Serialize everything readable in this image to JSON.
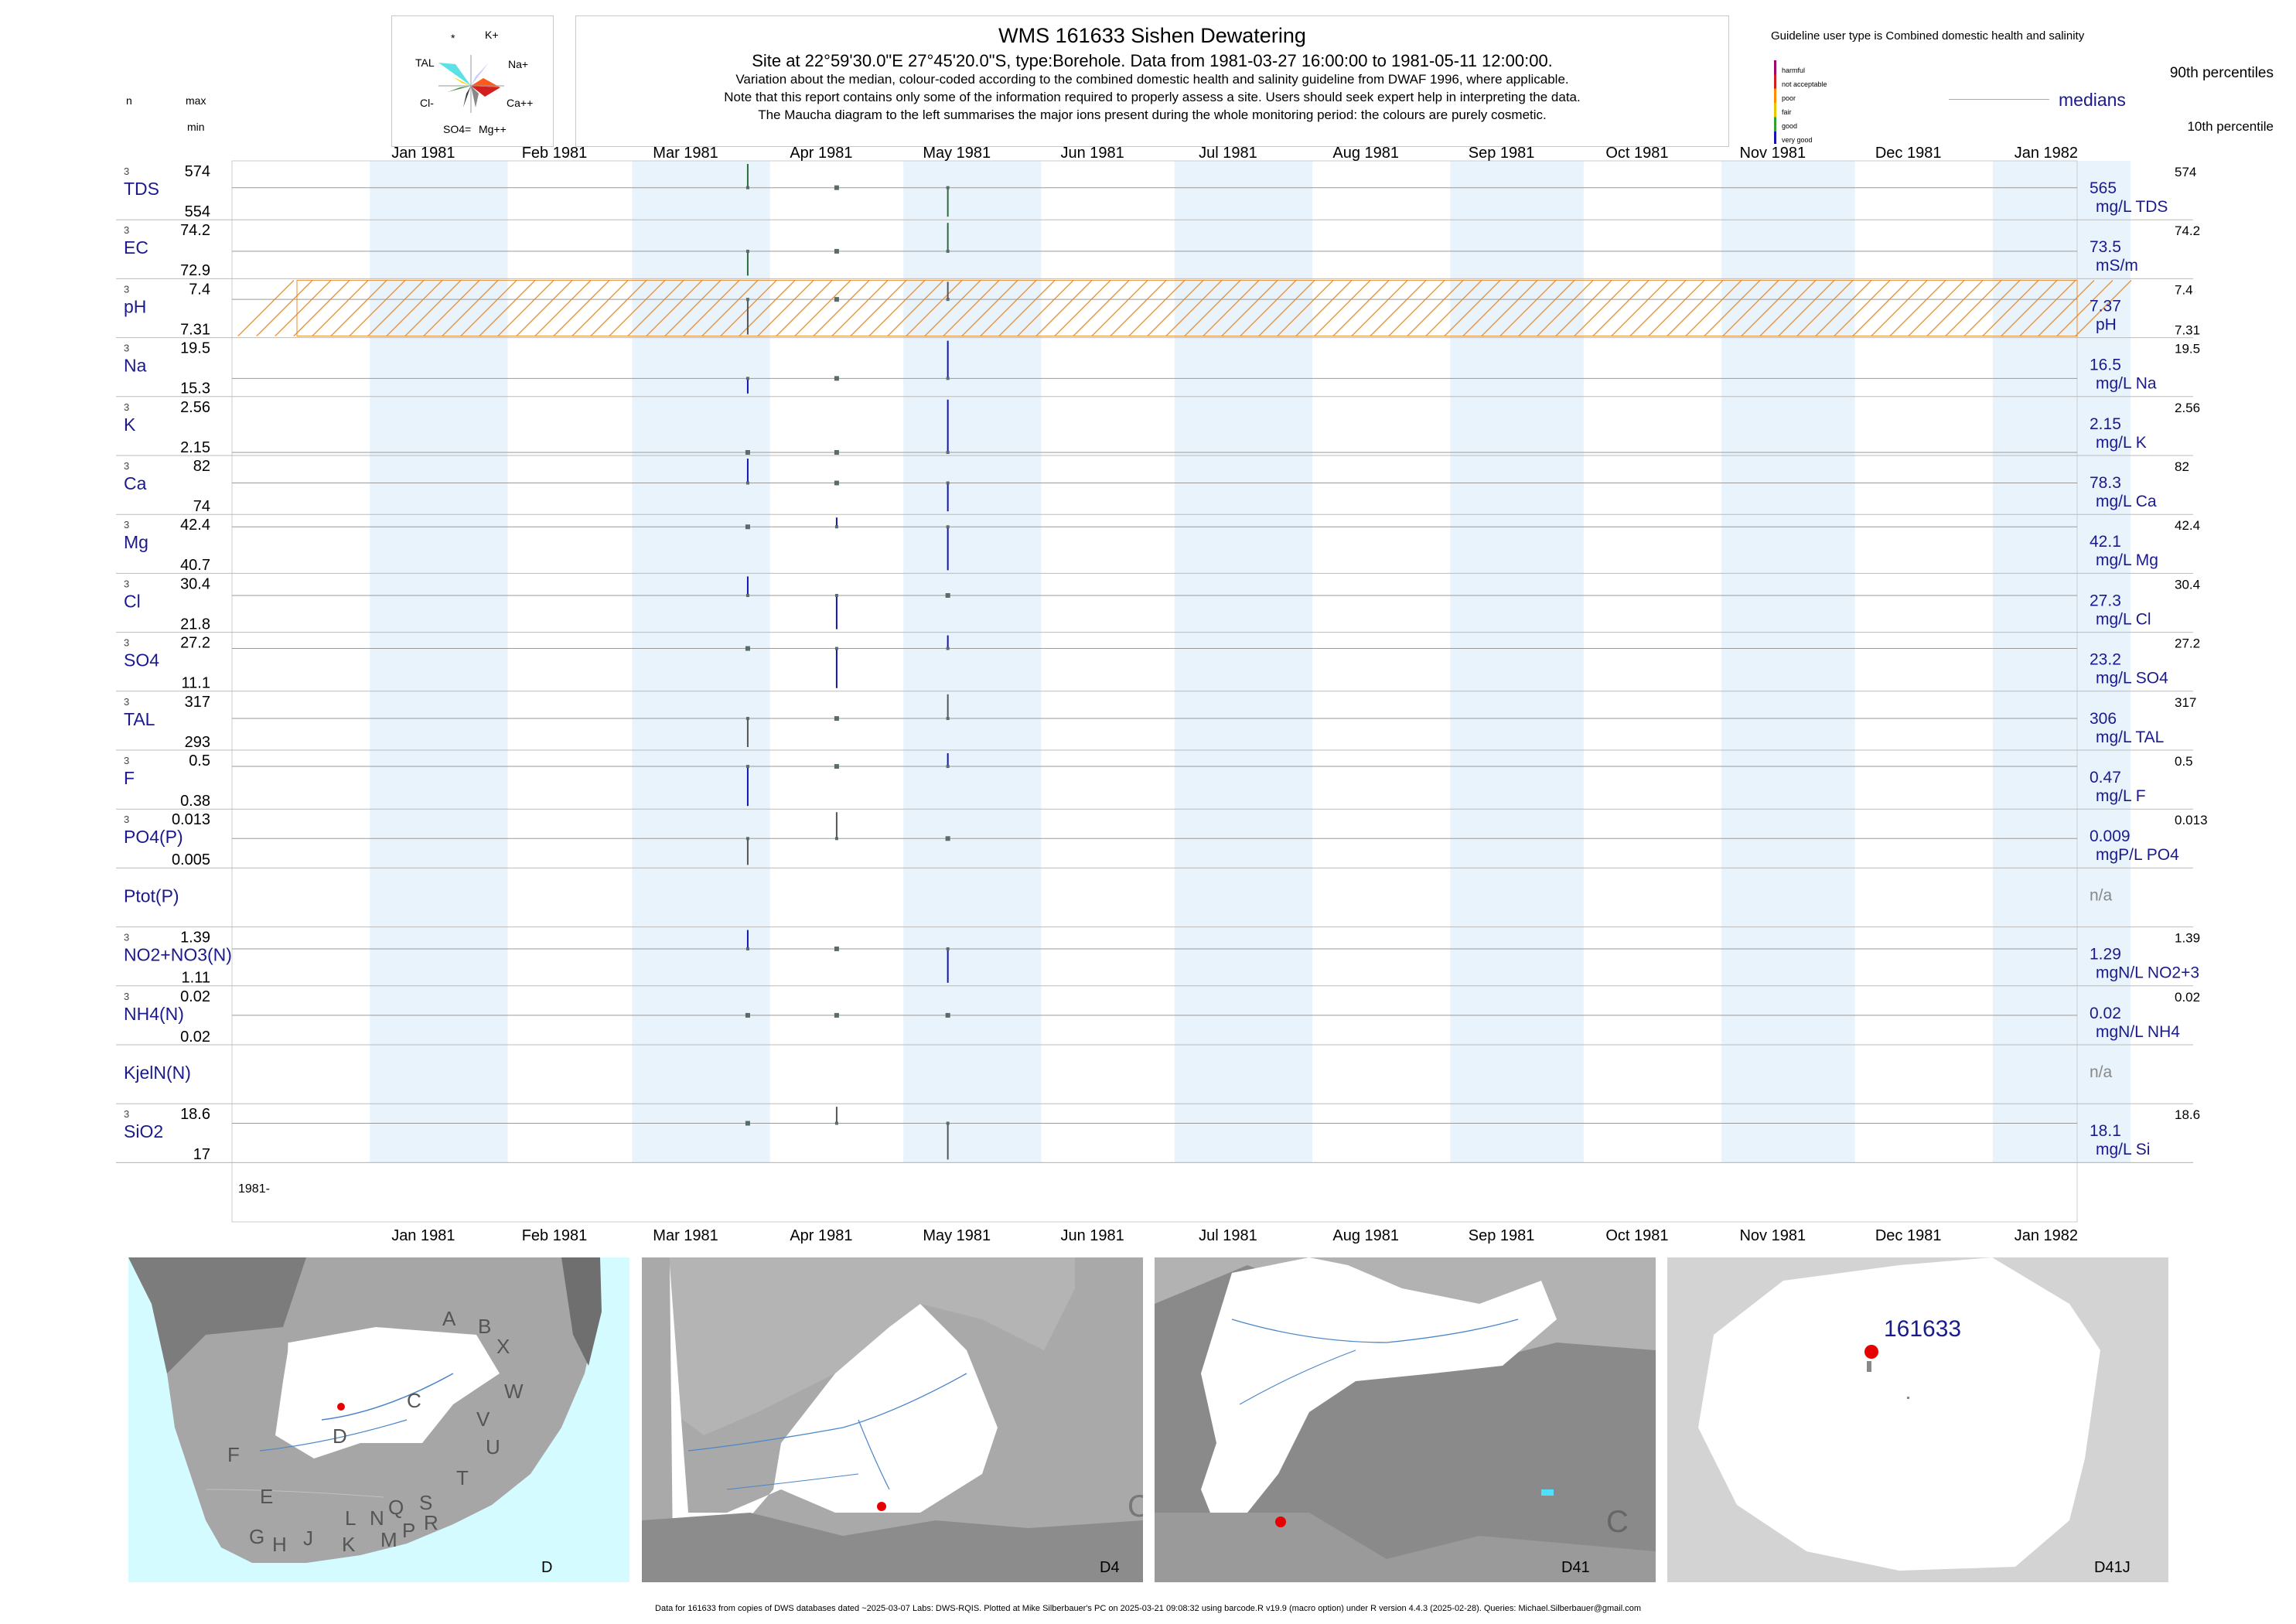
{
  "header": {
    "title": "WMS 161633  Sishen Dewatering",
    "site_line": "Site at 22°59'30.0\"E 27°45'20.0\"S, type:Borehole.  Data from 1981-03-27 16:00:00 to 1981-05-11 12:00:00.",
    "note1": "Variation about the median,  colour-coded according to the combined domestic health and salinity guideline from DWAF 1996, where applicable.",
    "note2": "Note that this report contains only some of the information required to properly assess a site. Users should seek expert help in interpreting the data.",
    "note3": "The Maucha diagram to the left summarises the major ions present during the whole monitoring period: the colours are purely cosmetic."
  },
  "column_headers": {
    "n": "n",
    "max": "max",
    "min": "min"
  },
  "maucha": {
    "labels": [
      "*",
      "K+",
      "TAL",
      "Na+",
      "Cl-",
      "Ca++",
      "SO4=",
      "Mg++"
    ]
  },
  "legend": {
    "guideline": "Guideline user type is Combined domestic health and salinity",
    "classes": [
      "harmful",
      "not acceptable",
      "poor",
      "fair",
      "good",
      "very good"
    ],
    "class_colors": [
      "#a0006e",
      "#d21e1e",
      "#ff8c00",
      "#e6c800",
      "#32a032",
      "#1414b4"
    ],
    "p90": "90th percentiles",
    "medians": "medians",
    "p10": "10th percentile"
  },
  "chart_data": {
    "type": "strip",
    "x_range": [
      "1980-12-01",
      "1982-01-20"
    ],
    "months": [
      "Jan 1981",
      "Feb 1981",
      "Mar 1981",
      "Apr 1981",
      "May 1981",
      "Jun 1981",
      "Jul 1981",
      "Aug 1981",
      "Sep 1981",
      "Oct 1981",
      "Nov 1981",
      "Dec 1981",
      "Jan 1982"
    ],
    "year_label": "1981-",
    "sample_dates": [
      "1981-03-27",
      "1981-04-16",
      "1981-05-11"
    ],
    "hatched_band_variable": "pH",
    "colors": {
      "stripe": "#e8f3fc",
      "very_good": "#1414b4",
      "good": "#2e6b3a",
      "gray": "#555555",
      "hatch": "#f08c28"
    },
    "rows": [
      {
        "label": "TDS",
        "n": "3",
        "max": "574",
        "min": "554",
        "median": "565",
        "unit": "mg/L TDS",
        "rmax": "574",
        "rmin": "",
        "values": [
          574,
          565,
          554
        ],
        "color": "good"
      },
      {
        "label": "EC",
        "n": "3",
        "max": "74.2",
        "min": "72.9",
        "median": "73.5",
        "unit": "mS/m",
        "rmax": "74.2",
        "rmin": "",
        "values": [
          72.9,
          73.5,
          74.2
        ],
        "color": "good"
      },
      {
        "label": "pH",
        "n": "3",
        "max": "7.4",
        "min": "7.31",
        "median": "7.37",
        "unit": "pH",
        "rmax": "7.4",
        "rmin": "7.31",
        "values": [
          7.31,
          7.37,
          7.4
        ],
        "color": "gray"
      },
      {
        "label": "Na",
        "n": "3",
        "max": "19.5",
        "min": "15.3",
        "median": "16.5",
        "unit": "mg/L Na",
        "rmax": "19.5",
        "rmin": "",
        "values": [
          15.3,
          16.5,
          19.5
        ],
        "color": "very_good"
      },
      {
        "label": "K",
        "n": "3",
        "max": "2.56",
        "min": "2.15",
        "median": "2.15",
        "unit": "mg/L K",
        "rmax": "2.56",
        "rmin": "",
        "values": [
          2.15,
          2.15,
          2.56
        ],
        "color": "very_good"
      },
      {
        "label": "Ca",
        "n": "3",
        "max": "82",
        "min": "74",
        "median": "78.3",
        "unit": "mg/L Ca",
        "rmax": "82",
        "rmin": "",
        "values": [
          82,
          78.3,
          74
        ],
        "color": "very_good"
      },
      {
        "label": "Mg",
        "n": "3",
        "max": "42.4",
        "min": "40.7",
        "median": "42.1",
        "unit": "mg/L Mg",
        "rmax": "42.4",
        "rmin": "",
        "values": [
          42.1,
          42.4,
          40.7
        ],
        "color": "very_good"
      },
      {
        "label": "Cl",
        "n": "3",
        "max": "30.4",
        "min": "21.8",
        "median": "27.3",
        "unit": "mg/L Cl",
        "rmax": "30.4",
        "rmin": "",
        "values": [
          30.4,
          21.8,
          27.3
        ],
        "color": "very_good"
      },
      {
        "label": "SO4",
        "n": "3",
        "max": "27.2",
        "min": "11.1",
        "median": "23.2",
        "unit": "mg/L SO4",
        "rmax": "27.2",
        "rmin": "",
        "values": [
          23.2,
          11.1,
          27.2
        ],
        "color": "very_good"
      },
      {
        "label": "TAL",
        "n": "3",
        "max": "317",
        "min": "293",
        "median": "306",
        "unit": "mg/L TAL",
        "rmax": "317",
        "rmin": "",
        "values": [
          293,
          306,
          317
        ],
        "color": "gray"
      },
      {
        "label": "F",
        "n": "3",
        "max": "0.5",
        "min": "0.38",
        "median": "0.47",
        "unit": "mg/L F",
        "rmax": "0.5",
        "rmin": "",
        "values": [
          0.38,
          0.47,
          0.5
        ],
        "color": "very_good"
      },
      {
        "label": "PO4(P)",
        "n": "3",
        "max": "0.013",
        "min": "0.005",
        "median": "0.009",
        "unit": "mgP/L PO4",
        "rmax": "0.013",
        "rmin": "",
        "values": [
          0.005,
          0.013,
          0.009
        ],
        "color": "gray"
      },
      {
        "label": "Ptot(P)",
        "n": "",
        "max": "",
        "min": "",
        "median": "n/a",
        "unit": "",
        "rmax": "",
        "rmin": "",
        "values": [],
        "color": "gray"
      },
      {
        "label": "NO2+NO3(N)",
        "n": "3",
        "max": "1.39",
        "min": "1.11",
        "median": "1.29",
        "unit": "mgN/L NO2+3",
        "rmax": "1.39",
        "rmin": "",
        "values": [
          1.39,
          1.29,
          1.11
        ],
        "color": "very_good"
      },
      {
        "label": "NH4(N)",
        "n": "3",
        "max": "0.02",
        "min": "0.02",
        "median": "0.02",
        "unit": "mgN/L NH4",
        "rmax": "0.02",
        "rmin": "",
        "values": [
          0.02,
          0.02,
          0.02
        ],
        "color": "gray"
      },
      {
        "label": "KjelN(N)",
        "n": "",
        "max": "",
        "min": "",
        "median": "n/a",
        "unit": "",
        "rmax": "",
        "rmin": "",
        "values": [],
        "color": "gray"
      },
      {
        "label": "SiO2",
        "n": "3",
        "max": "18.6",
        "min": "17",
        "median": "18.1",
        "unit": "mg/L Si",
        "rmax": "18.6",
        "rmin": "",
        "values": [
          18.1,
          18.6,
          17
        ],
        "color": "gray"
      }
    ]
  },
  "maps": {
    "m1": {
      "letters": [
        "A",
        "B",
        "X",
        "C",
        "W",
        "D",
        "V",
        "U",
        "F",
        "T",
        "E",
        "L",
        "N",
        "Q",
        "S",
        "G",
        "H",
        "J",
        "K",
        "M",
        "P",
        "R"
      ],
      "caption": "D"
    },
    "m2": {
      "caption": "D4",
      "region": "C"
    },
    "m3": {
      "caption": "D41",
      "region": "C"
    },
    "m4": {
      "caption": "D41J",
      "site": "161633"
    }
  },
  "footer": "Data for 161633 from copies of DWS databases dated ~2025-03-07 Labs: DWS-RQIS. Plotted at Mike Silberbauer's PC on 2025-03-21 09:08:32 using barcode.R v19.9 (macro option) under R version 4.4.3 (2025-02-28). Queries: Michael.Silberbauer@gmail.com"
}
